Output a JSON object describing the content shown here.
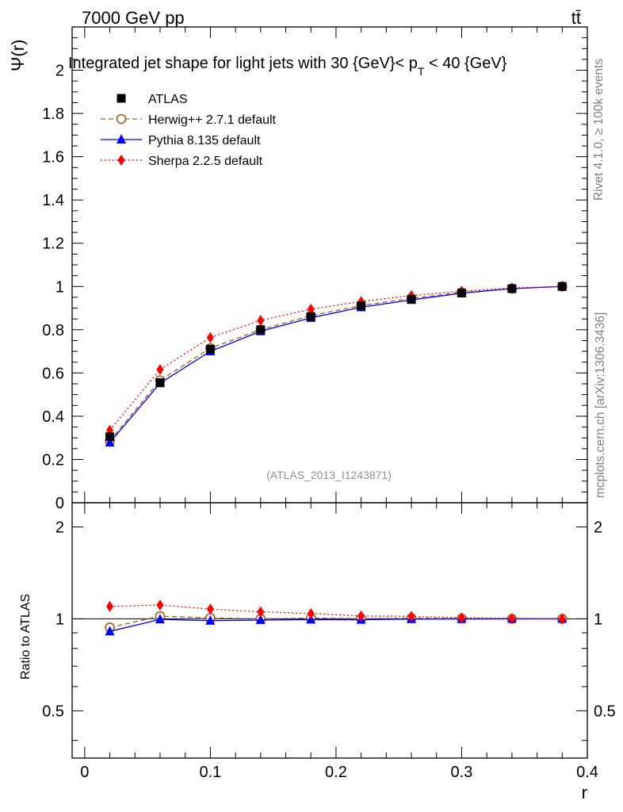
{
  "header": {
    "energy_label": "7000 GeV pp",
    "process_label": "tt̄"
  },
  "side": {
    "rivet_label": "Rivet 4.1.0, ≥ 100k events",
    "mcplots_label": "mcplots.cern.ch [arXiv:1306.3436]"
  },
  "chart_data": {
    "type": "line",
    "title": "Integrated jet shape for light jets with 30 {GeV}< p_T < 40 {GeV}",
    "title_parts": {
      "main": "Integrated jet shape for light jets with 30 {GeV}< p",
      "subscript": "T",
      "tail": " < 40 {GeV}"
    },
    "analysis_label": "(ATLAS_2013_I1243871)",
    "xlabel": "r",
    "ylabel": "Ψ(r)",
    "ratio_ylabel": "Ratio to ATLAS",
    "xlim": [
      -0.01,
      0.4
    ],
    "ylim": [
      0,
      2.2
    ],
    "ratio_ylim": [
      0.35,
      2.4
    ],
    "x_ticks": [
      0,
      0.1,
      0.2,
      0.3,
      0.4
    ],
    "x_tick_labels": [
      "0",
      "0.1",
      "0.2",
      "0.3",
      "0.4"
    ],
    "y_ticks": [
      0,
      0.2,
      0.4,
      0.6,
      0.8,
      1,
      1.2,
      1.4,
      1.6,
      1.8,
      2
    ],
    "y_tick_labels": [
      "0",
      "0.2",
      "0.4",
      "0.6",
      "0.8",
      "1",
      "1.2",
      "1.4",
      "1.6",
      "1.8",
      "2"
    ],
    "ratio_y_ticks": [
      0.5,
      1,
      2
    ],
    "ratio_y_tick_labels": [
      "0.5",
      "1",
      "2"
    ],
    "x": [
      0.02,
      0.06,
      0.1,
      0.14,
      0.18,
      0.22,
      0.26,
      0.3,
      0.34,
      0.38
    ],
    "series": [
      {
        "name": "ATLAS",
        "color": "#000000",
        "marker": "square",
        "line": "none",
        "values": [
          0.305,
          0.555,
          0.71,
          0.8,
          0.86,
          0.91,
          0.94,
          0.97,
          0.99,
          1.0
        ]
      },
      {
        "name": "Herwig++ 2.7.1 default",
        "color": "#a65d1a",
        "marker": "open-circle",
        "line": "dashed",
        "values": [
          0.286,
          0.566,
          0.715,
          0.8,
          0.865,
          0.912,
          0.945,
          0.972,
          0.99,
          1.0
        ],
        "ratio": [
          0.937,
          1.02,
          1.007,
          1.0,
          1.006,
          1.002,
          1.005,
          1.002,
          1.0,
          1.0
        ]
      },
      {
        "name": "Pythia 8.135 default",
        "color": "#0000ff",
        "marker": "triangle",
        "line": "solid",
        "values": [
          0.278,
          0.553,
          0.7,
          0.793,
          0.855,
          0.904,
          0.938,
          0.969,
          0.99,
          1.0
        ],
        "ratio": [
          0.91,
          0.996,
          0.986,
          0.991,
          0.994,
          0.993,
          0.998,
          0.999,
          1.0,
          1.0
        ]
      },
      {
        "name": "Sherpa 2.2.5 default",
        "color": "#ff0000",
        "marker": "diamond",
        "line": "dotted",
        "values": [
          0.335,
          0.616,
          0.764,
          0.843,
          0.895,
          0.93,
          0.958,
          0.978,
          0.993,
          1.0
        ],
        "ratio": [
          1.098,
          1.11,
          1.076,
          1.054,
          1.041,
          1.022,
          1.019,
          1.008,
          1.003,
          1.0
        ]
      }
    ]
  }
}
